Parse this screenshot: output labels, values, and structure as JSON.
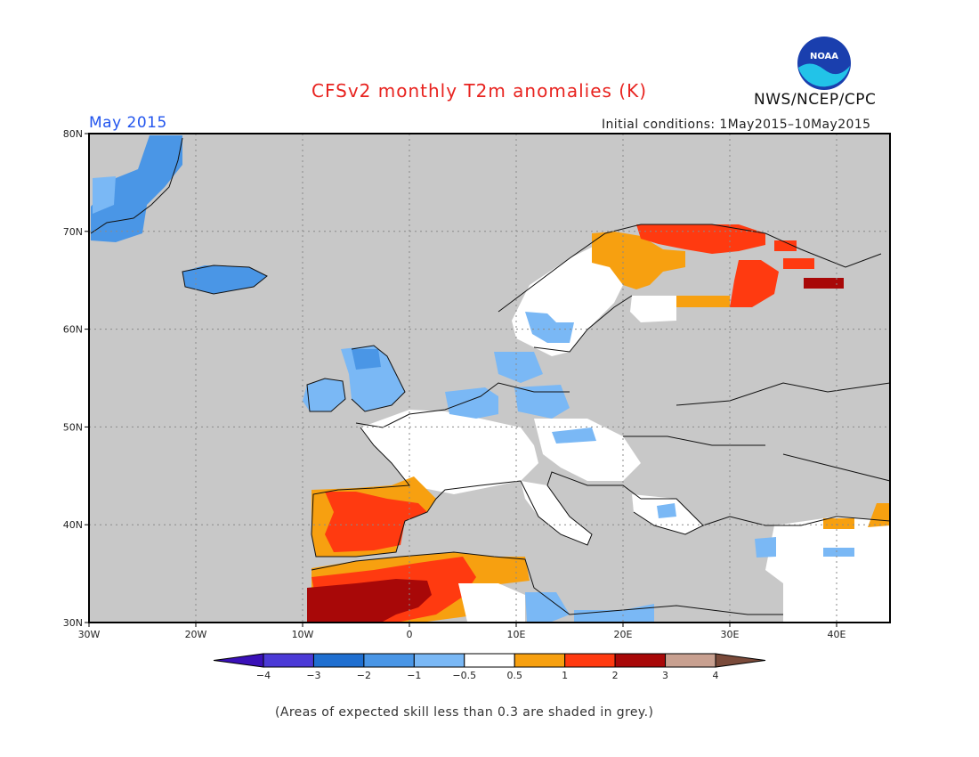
{
  "title": "CFSv2 monthly T2m anomalies (K)",
  "month": "May 2015",
  "initial_conditions": "Initial conditions: 1May2015–10May2015",
  "org": "NWS/NCEP/CPC",
  "logo_text": "NOAA",
  "footnote": "(Areas of expected skill less than 0.3 are shaded in grey.)",
  "map": {
    "lon_range": [
      -30,
      45
    ],
    "lat_range": [
      30,
      80
    ],
    "x_ticks": [
      {
        "lon": -30,
        "label": "30W"
      },
      {
        "lon": -20,
        "label": "20W"
      },
      {
        "lon": -10,
        "label": "10W"
      },
      {
        "lon": 0,
        "label": "0"
      },
      {
        "lon": 10,
        "label": "10E"
      },
      {
        "lon": 20,
        "label": "20E"
      },
      {
        "lon": 30,
        "label": "30E"
      },
      {
        "lon": 40,
        "label": "40E"
      }
    ],
    "y_ticks": [
      {
        "lat": 80,
        "label": "80N"
      },
      {
        "lat": 70,
        "label": "70N"
      },
      {
        "lat": 60,
        "label": "60N"
      },
      {
        "lat": 50,
        "label": "50N"
      },
      {
        "lat": 40,
        "label": "40N"
      },
      {
        "lat": 30,
        "label": "30N"
      }
    ],
    "colors": {
      "grey": "#c8c8c8",
      "neutral": "#ffffff",
      "lt_blue": "#7ab8f5",
      "blue": "#4a96e6",
      "dk_blue": "#1f6fd0",
      "orange": "#f7a010",
      "red": "#ff3a10",
      "dk_red": "#a80808"
    }
  },
  "colorbar": {
    "colors": [
      "#3a10b8",
      "#4b3ad6",
      "#1f6fd0",
      "#4a96e6",
      "#7ab8f5",
      "#ffffff",
      "#f7a010",
      "#ff3a10",
      "#a80808",
      "#c8a090",
      "#7a4a3a"
    ],
    "labels": [
      "−4",
      "−3",
      "−2",
      "−1",
      "−0.5",
      "0.5",
      "1",
      "2",
      "3",
      "4"
    ]
  }
}
